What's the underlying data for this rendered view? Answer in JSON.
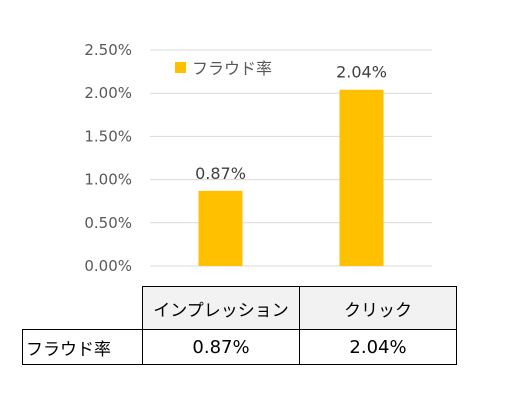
{
  "chart_data": {
    "type": "bar",
    "categories": [
      "インプレッション",
      "クリック"
    ],
    "series": [
      {
        "name": "フラウド率",
        "values": [
          0.87,
          2.04
        ],
        "color": "#FFC000"
      }
    ],
    "data_labels": [
      "0.87%",
      "2.04%"
    ],
    "y_ticks": [
      "0.00%",
      "0.50%",
      "1.00%",
      "1.50%",
      "2.00%",
      "2.50%"
    ],
    "ylim": [
      0,
      2.5
    ],
    "grid": true,
    "legend": "top-left",
    "gridline_color": "#D9D9D9"
  },
  "table": {
    "row_header": "フラウド率",
    "values": [
      "0.87%",
      "2.04%"
    ]
  }
}
